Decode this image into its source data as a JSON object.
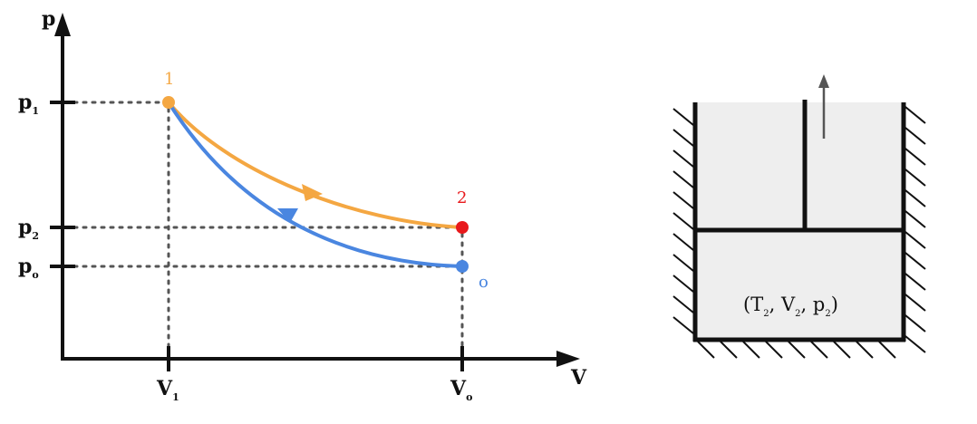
{
  "diagram": {
    "axes": {
      "y_label": "p",
      "x_label": "V"
    },
    "y_ticks": [
      {
        "main": "p",
        "sub": "1"
      },
      {
        "main": "p",
        "sub": "2"
      },
      {
        "main": "p",
        "sub": "o"
      }
    ],
    "x_ticks": [
      {
        "main": "V",
        "sub": "1"
      },
      {
        "main": "V",
        "sub": "o"
      }
    ],
    "points": [
      {
        "label": "1",
        "color": "#f4a742"
      },
      {
        "label": "2",
        "color": "#e8191c"
      },
      {
        "label": "o",
        "color": "#4a86e0"
      }
    ],
    "curves": [
      {
        "name": "orange-path",
        "color": "#f4a742",
        "direction": "1 to 2"
      },
      {
        "name": "blue-path",
        "color": "#4a86e0",
        "direction": "o to 1"
      }
    ],
    "cylinder": {
      "state": {
        "open": "(",
        "T": "T",
        "T_sub": "2",
        "V": "V",
        "V_sub": "2",
        "p": "p",
        "p_sub": "2",
        "close": ")"
      },
      "fill_color": "#eeeeee"
    }
  }
}
